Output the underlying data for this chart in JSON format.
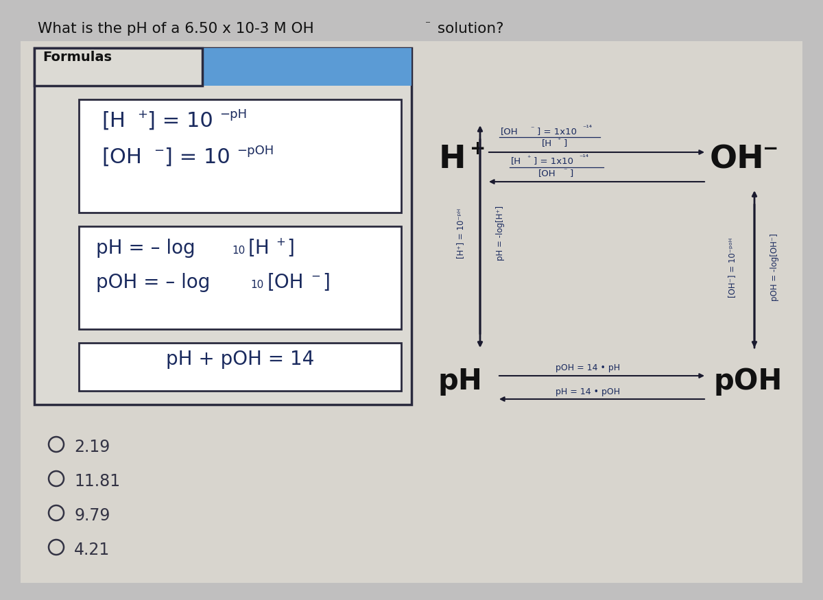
{
  "bg_color": "#c0bfbf",
  "content_bg": "#e8e6e0",
  "white": "#ffffff",
  "blue_header": "#5b9bd5",
  "text_color": "#1a2a5e",
  "dark_text": "#1a1a2e",
  "box_border": "#2a2a3e",
  "arrow_color": "#1a1a2e",
  "choices": [
    "2.19",
    "11.81",
    "9.79",
    "4.21"
  ],
  "choice_color": "#333344"
}
